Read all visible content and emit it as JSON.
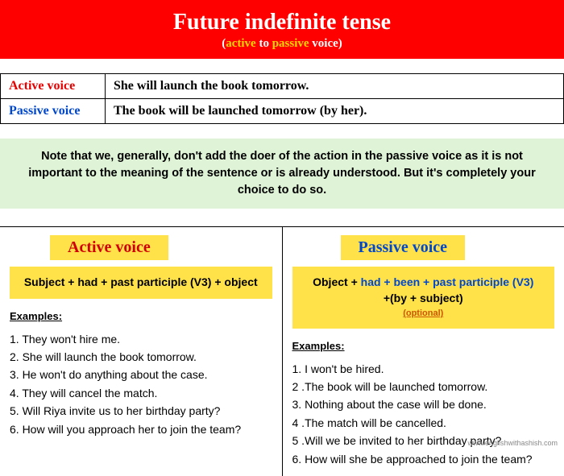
{
  "header": {
    "title": "Future indefinite tense",
    "sub_paren_open": "(",
    "sub_active": "active",
    "sub_to": " to ",
    "sub_passive": "passive",
    "sub_voice": " voice",
    "sub_paren_close": ")"
  },
  "intro_table": {
    "active_label": "Active voice",
    "active_sentence": "She will launch the book tomorrow.",
    "passive_label": "Passive voice",
    "passive_sentence": "The book will be launched tomorrow (by her)."
  },
  "note": "Note that we, generally, don't add the doer of the action in the passive voice as it is not important to the meaning of the sentence or is already understood. But it's completely your choice to do so.",
  "left": {
    "title": "Active voice",
    "formula": "Subject + had + past participle (V3) + object",
    "examples_label": "Examples:",
    "ex1": "1. They won't hire me.",
    "ex2": "2. She will launch the book tomorrow.",
    "ex3": "3. He won't do anything about the case.",
    "ex4": "4. They will cancel the match.",
    "ex5": "5. Will Riya invite us to her birthday party?",
    "ex6": "6. How will you approach her to join the team?"
  },
  "right": {
    "title": "Passive voice",
    "formula_pre": "Object + ",
    "formula_blue": "had + been + past participle (V3)",
    "formula_post_line2": "+(by + subject)",
    "formula_optional": "(optional)",
    "examples_label": "Examples:",
    "ex1": "1. I won't be hired.",
    "ex2": "2 .The book will be launched tomorrow.",
    "ex3": "3. Nothing about the case will be done.",
    "ex4": "4 .The match will be cancelled.",
    "ex5": "5 .Will we be invited to her birthday party?",
    "ex6": "6. How will she be approached to join the team?"
  },
  "footer_url": "www.englishwithashish.com"
}
